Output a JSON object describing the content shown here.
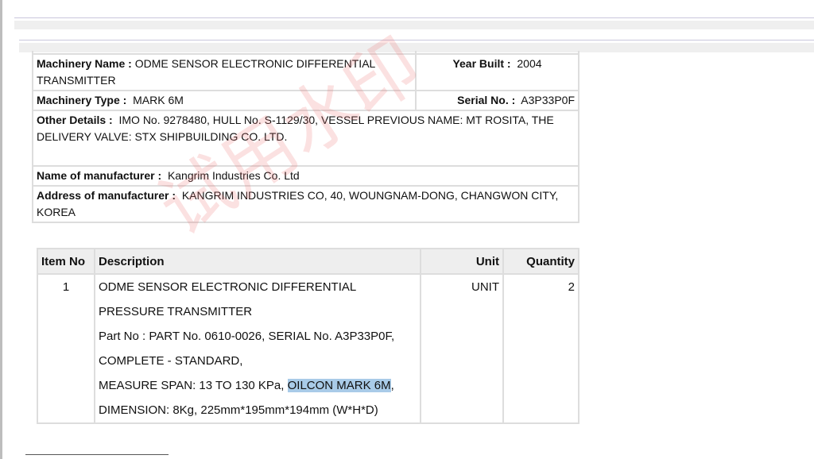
{
  "details": {
    "machinery_name_label": "Machinery Name :",
    "machinery_name": "ODME SENSOR ELECTRONIC DIFFERENTIAL TRANSMITTER",
    "year_built_label": "Year Built :",
    "year_built": "2004",
    "machinery_type_label": "Machinery Type :",
    "machinery_type": "MARK 6M",
    "serial_no_label": "Serial No. :",
    "serial_no": "A3P33P0F",
    "other_details_label": "Other Details :",
    "other_details": "IMO No. 9278480, HULL No. S-1129/30, VESSEL PREVIOUS NAME: MT ROSITA, THE DELIVERY VALVE: STX SHIPBUILDING CO. LTD.",
    "manufacturer_label": "Name of manufacturer :",
    "manufacturer": "Kangrim Industries Co. Ltd",
    "address_label": "Address of manufacturer :",
    "address": "KANGRIM INDUSTRIES CO, 40, WOUNGNAM-DONG, CHANGWON CITY, KOREA"
  },
  "items": {
    "headers": [
      "Item No",
      "Description",
      "Unit",
      "Quantity"
    ],
    "rows": [
      {
        "item_no": "1",
        "description_lines": [
          "ODME SENSOR ELECTRONIC DIFFERENTIAL",
          "PRESSURE TRANSMITTER",
          "Part No : PART No. 0610-0026, SERIAL No. A3P33P0F,",
          "COMPLETE - STANDARD,",
          "MEASURE SPAN: 13 TO 130 KPa, ",
          "DIMENSION: 8Kg, 225mm*195mm*194mm (W*H*D)"
        ],
        "highlighted_text": "OILCON MARK 6M",
        "after_highlight": ",",
        "unit": "UNIT",
        "quantity": "2"
      }
    ]
  },
  "watermark": "试用水印"
}
